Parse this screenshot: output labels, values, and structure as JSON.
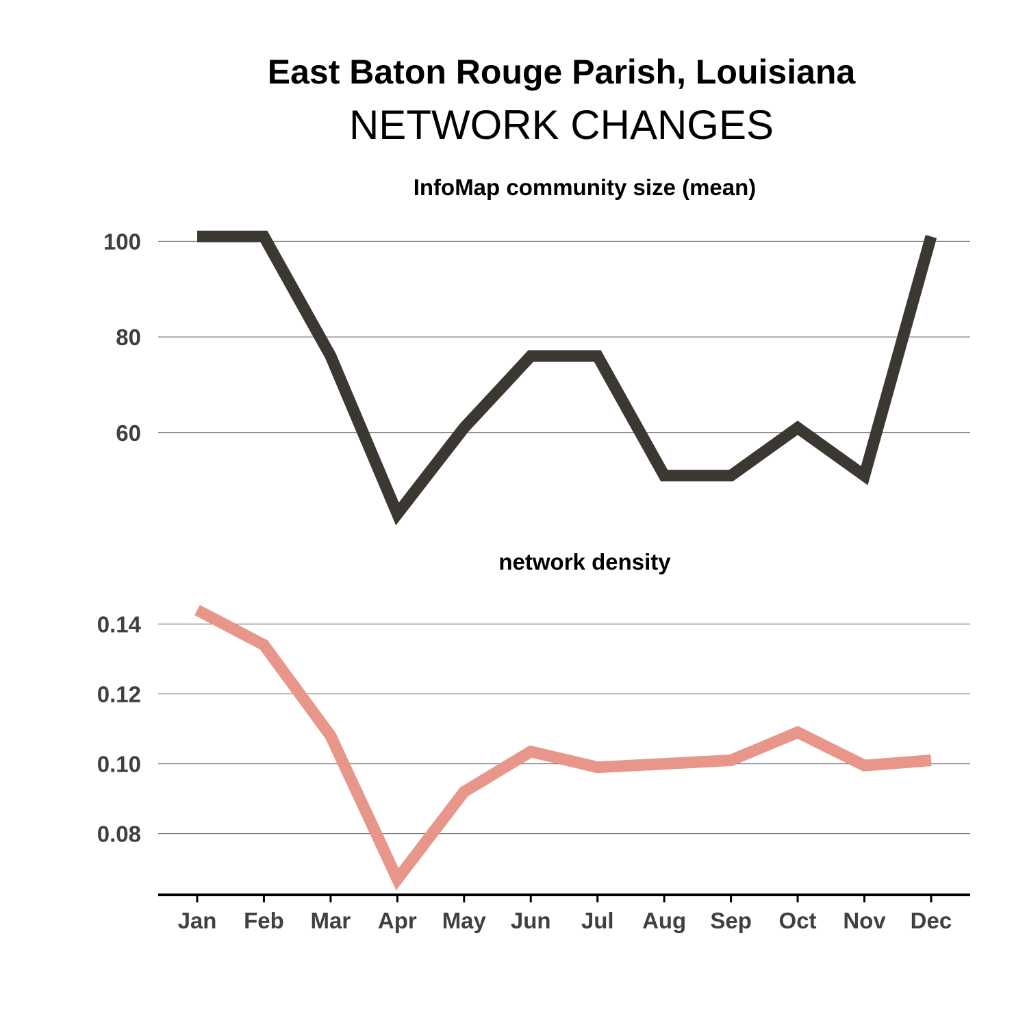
{
  "header": {
    "title": "East Baton Rouge Parish, Louisiana",
    "subtitle": "NETWORK CHANGES"
  },
  "chart_data": [
    {
      "type": "line",
      "title": "InfoMap community size (mean)",
      "categories": [
        "Jan",
        "Feb",
        "Mar",
        "Apr",
        "May",
        "Jun",
        "Jul",
        "Aug",
        "Sep",
        "Oct",
        "Nov",
        "Dec"
      ],
      "series": [
        {
          "values": [
            101,
            101,
            76,
            43,
            61,
            76,
            76,
            51,
            51,
            61,
            51,
            101
          ],
          "color": "#3b3832"
        }
      ],
      "yticks": [
        60,
        80,
        100
      ],
      "ylim": [
        38.5,
        107.5
      ],
      "grid": true
    },
    {
      "type": "line",
      "title": "network density",
      "categories": [
        "Jan",
        "Feb",
        "Mar",
        "Apr",
        "May",
        "Jun",
        "Jul",
        "Aug",
        "Sep",
        "Oct",
        "Nov",
        "Dec"
      ],
      "series": [
        {
          "values": [
            0.144,
            0.134,
            0.108,
            0.067,
            0.092,
            0.1035,
            0.099,
            0.1,
            0.101,
            0.109,
            0.0995,
            0.101
          ],
          "color": "#e8968a"
        }
      ],
      "yticks": [
        0.08,
        0.1,
        0.12,
        0.14
      ],
      "ylim": [
        0.0625,
        0.1485
      ],
      "grid": true
    }
  ]
}
